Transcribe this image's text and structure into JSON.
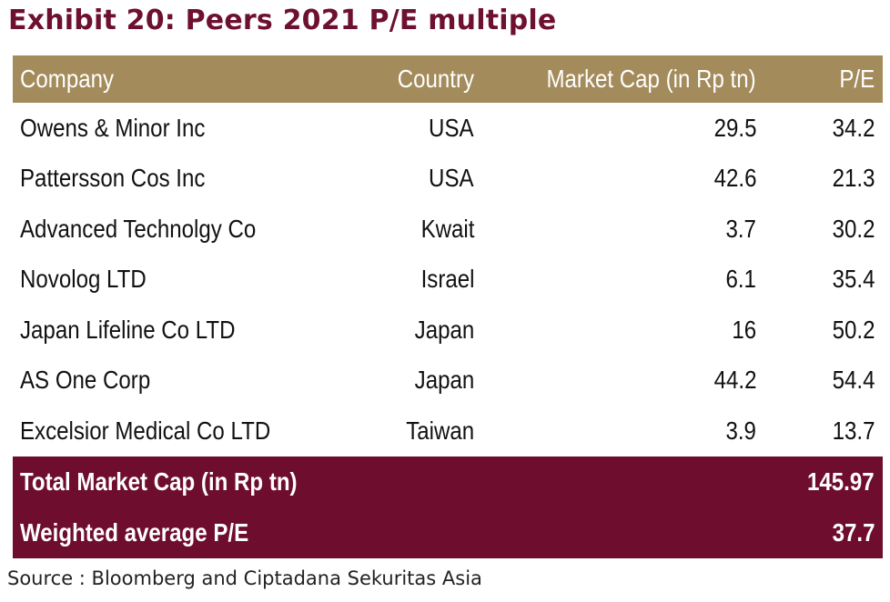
{
  "title": "Exhibit 20: Peers 2021 P/E multiple",
  "table": {
    "headers": {
      "company": "Company",
      "country": "Country",
      "market_cap": "Market Cap (in Rp tn)",
      "pe": "P/E"
    },
    "rows": [
      {
        "company": "Owens & Minor Inc",
        "country": "USA",
        "market_cap": "29.5",
        "pe": "34.2"
      },
      {
        "company": "Pattersson Cos Inc",
        "country": "USA",
        "market_cap": "42.6",
        "pe": "21.3"
      },
      {
        "company": "Advanced Technolgy Co",
        "country": "Kwait",
        "market_cap": "3.7",
        "pe": "30.2"
      },
      {
        "company": "Novolog LTD",
        "country": "Israel",
        "market_cap": "6.1",
        "pe": "35.4"
      },
      {
        "company": "Japan Lifeline Co LTD",
        "country": "Japan",
        "market_cap": "16",
        "pe": "50.2"
      },
      {
        "company": "AS One Corp",
        "country": "Japan",
        "market_cap": "44.2",
        "pe": "54.4"
      },
      {
        "company": "Excelsior Medical Co LTD",
        "country": "Taiwan",
        "market_cap": "3.9",
        "pe": "13.7"
      }
    ],
    "summary": [
      {
        "label": "Total Market Cap (in Rp tn)",
        "value": "145.97"
      },
      {
        "label": "Weighted average P/E",
        "value": "37.7"
      }
    ]
  },
  "source": "Source : Bloomberg and Ciptadana Sekuritas Asia",
  "colors": {
    "title": "#6e1030",
    "header_bg": "#a38b5b",
    "summary_bg": "#6e0d2e"
  }
}
